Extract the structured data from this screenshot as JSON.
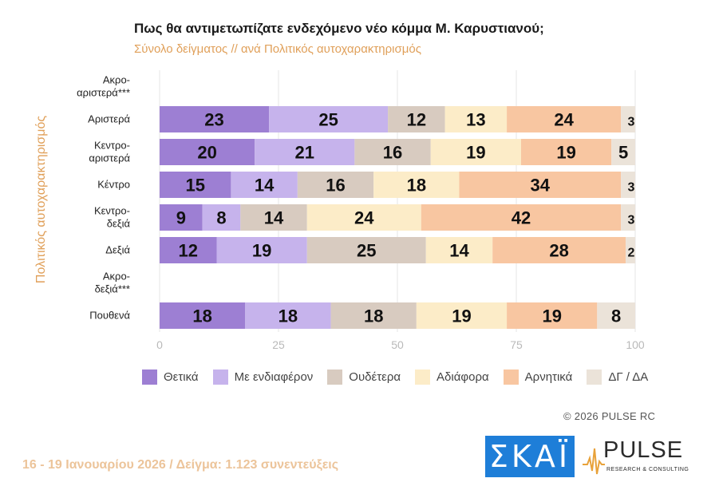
{
  "header": {
    "title": "Πως θα αντιμετωπίζατε ενδεχόμενο νέο κόμμα Μ. Καρυστιανού;",
    "subtitle": "Σύνολο δείγματος // ανά Πολιτικός αυτοχαρακτηρισμός"
  },
  "chart_data": {
    "type": "bar",
    "orientation": "horizontal",
    "stacked": true,
    "ylabel": "Πολιτικός αυτοχαρακτηρισμός",
    "xlim": [
      0,
      100
    ],
    "xticks": [
      "0",
      "25",
      "50",
      "75",
      "100"
    ],
    "categories": [
      [
        "Ακρο-",
        "αριστερά***"
      ],
      [
        "Αριστερά"
      ],
      [
        "Κεντρο-",
        "αριστερά"
      ],
      [
        "Κέντρο"
      ],
      [
        "Κεντρο-",
        "δεξιά"
      ],
      [
        "Δεξιά"
      ],
      [
        "Ακρο-",
        "δεξιά***"
      ],
      [
        "Πουθενά"
      ]
    ],
    "series": [
      {
        "name": "Θετικά",
        "color": "#9d7fd3",
        "values": [
          null,
          23,
          20,
          15,
          9,
          12,
          null,
          18
        ]
      },
      {
        "name": "Με ενδιαφέρον",
        "color": "#c6b3ec",
        "values": [
          null,
          25,
          21,
          14,
          8,
          19,
          null,
          18
        ]
      },
      {
        "name": "Ουδέτερα",
        "color": "#d8cbc0",
        "values": [
          null,
          12,
          16,
          16,
          14,
          25,
          null,
          18
        ]
      },
      {
        "name": "Αδιάφορα",
        "color": "#fcecc8",
        "values": [
          null,
          13,
          19,
          18,
          24,
          14,
          null,
          19
        ]
      },
      {
        "name": "Αρνητικά",
        "color": "#f8c6a1",
        "values": [
          null,
          24,
          19,
          34,
          42,
          28,
          null,
          19
        ]
      },
      {
        "name": "ΔΓ / ΔΑ",
        "color": "#ebe3d9",
        "values": [
          null,
          3,
          5,
          3,
          3,
          2,
          null,
          8
        ]
      }
    ]
  },
  "footer": {
    "copyright": "©  2026  PULSE RC",
    "note": "16 - 19 Ιανουαρίου 2026  /  Δείγμα:  1.123 συνεντεύξεις"
  },
  "logos": {
    "skai": "ΣΚΑΪ",
    "pulse": "PULSE",
    "pulse_tagline": "RESEARCH & CONSULTING"
  }
}
